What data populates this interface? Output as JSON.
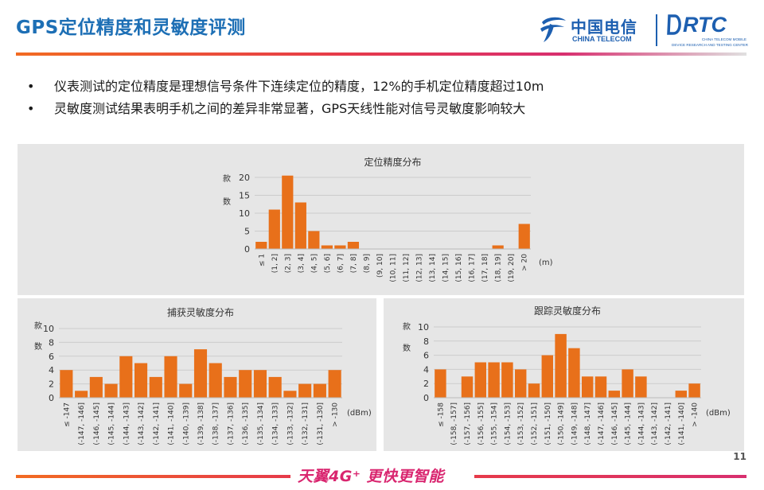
{
  "slide": {
    "title": "GPS定位精度和灵敏度评测",
    "page_number": "11",
    "footer_slogan": "天翼4G⁺ 更快更智能",
    "accent_color": "#1d6fb5",
    "bar_color": "#e8701a"
  },
  "logos": {
    "china_telecom_cn": "中国电信",
    "china_telecom_en": "CHINA TELECOM",
    "rtc_word": "RTC",
    "rtc_sub1": "CHINA TELECOM MOBILE",
    "rtc_sub2": "DEVICE RESEARCH AND TESTING CENTER"
  },
  "bullets": [
    {
      "marker": "•",
      "text": "仪表测试的定位精度是理想信号条件下连续定位的精度，12%的手机定位精度超过10m"
    },
    {
      "marker": "•",
      "text": "灵敏度测试结果表明手机之间的差异非常显著，GPS天线性能对信号灵敏度影响较大"
    }
  ],
  "chart_data": [
    {
      "type": "bar",
      "title": "定位精度分布",
      "ylabel": "款数",
      "xunit": "(m)",
      "ylim": [
        0,
        20
      ],
      "yticks": [
        0,
        5,
        10,
        15,
        20
      ],
      "categories": [
        "≤ 1",
        "(1, 2]",
        "(2, 3]",
        "(3, 4]",
        "(4, 5]",
        "(5, 6]",
        "(6, 7]",
        "(7, 8]",
        "(8, 9]",
        "(9, 10]",
        "(10, 11]",
        "(11, 12]",
        "(12, 13]",
        "(13, 14]",
        "(14, 15]",
        "(15, 16]",
        "(16, 17]",
        "(17, 18]",
        "(18, 19]",
        "(19, 20]",
        "> 20"
      ],
      "values": [
        2,
        11,
        20.5,
        13,
        5,
        1,
        1,
        2,
        0,
        0,
        0,
        0,
        0,
        0,
        0,
        0,
        0,
        0,
        1,
        0,
        7
      ],
      "grid": true,
      "legend": "none"
    },
    {
      "type": "bar",
      "title": "捕获灵敏度分布",
      "ylabel": "款数",
      "xunit": "(dBm)",
      "ylim": [
        0,
        10
      ],
      "yticks": [
        0,
        2,
        4,
        6,
        8,
        10
      ],
      "categories": [
        "≤ -147",
        "(-147, -146]",
        "(-146, -145]",
        "(-145, -144]",
        "(-144, -143]",
        "(-143, -142]",
        "(-142, -141]",
        "(-141, -140]",
        "(-140, -139]",
        "(-139, -138]",
        "(-138, -137]",
        "(-137, -136]",
        "(-136, -135]",
        "(-135, -134]",
        "(-134, -133]",
        "(-133, -132]",
        "(-132, -131]",
        "(-131, -130]",
        "> -130"
      ],
      "values": [
        4,
        1,
        3,
        2,
        6,
        5,
        3,
        6,
        2,
        7,
        5,
        3,
        4,
        4,
        3,
        1,
        2,
        2,
        4
      ],
      "grid": true,
      "legend": "none"
    },
    {
      "type": "bar",
      "title": "跟踪灵敏度分布",
      "ylabel": "款数",
      "xunit": "(dBm)",
      "ylim": [
        0,
        10
      ],
      "yticks": [
        0,
        2,
        4,
        6,
        8,
        10
      ],
      "categories": [
        "≤ -158",
        "(-158, -157]",
        "(-157, -156]",
        "(-156, -155]",
        "(-155, -154]",
        "(-154, -153]",
        "(-153, -152]",
        "(-152, -151]",
        "(-151, -150]",
        "(-150, -149]",
        "(-149, -148]",
        "(-148, -147]",
        "(-147, -146]",
        "(-146, -145]",
        "(-145, -144]",
        "(-144, -143]",
        "(-143, -142]",
        "(-142, -141]",
        "(-141, -140]",
        "> -140"
      ],
      "values": [
        4,
        0,
        3,
        5,
        5,
        5,
        4,
        2,
        6,
        9,
        7,
        3,
        3,
        1,
        4,
        3,
        0,
        0,
        1,
        2
      ],
      "grid": true,
      "legend": "none"
    }
  ]
}
